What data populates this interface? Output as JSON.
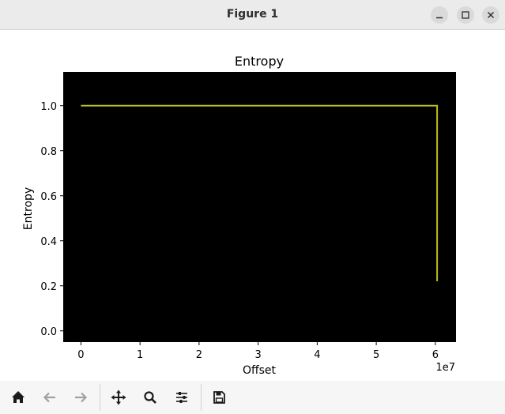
{
  "window": {
    "title": "Figure 1"
  },
  "toolbar": {
    "buttons": [
      {
        "icon": "home-icon",
        "enabled": true
      },
      {
        "icon": "back-arrow-icon",
        "enabled": false
      },
      {
        "icon": "forward-arrow-icon",
        "enabled": false
      },
      {
        "icon": "pan-move-icon",
        "enabled": true
      },
      {
        "icon": "zoom-magnifier-icon",
        "enabled": true
      },
      {
        "icon": "configure-sliders-icon",
        "enabled": true
      },
      {
        "icon": "save-floppy-icon",
        "enabled": true
      }
    ]
  },
  "colors": {
    "plot_background": "#000000",
    "line": "#bcbd22",
    "titlebar": "#ebebeb",
    "toolbar": "#f6f6f6"
  },
  "chart_data": {
    "type": "line",
    "title": "Entropy",
    "xlabel": "Offset",
    "ylabel": "Entropy",
    "x_offset_text": "1e7",
    "x_ticks": [
      0,
      1,
      2,
      3,
      4,
      5,
      6
    ],
    "x_tick_labels": [
      "0",
      "1",
      "2",
      "3",
      "4",
      "5",
      "6"
    ],
    "y_ticks": [
      0.0,
      0.2,
      0.4,
      0.6,
      0.8,
      1.0
    ],
    "y_tick_labels": [
      "0.0",
      "0.2",
      "0.4",
      "0.6",
      "0.8",
      "1.0"
    ],
    "xlim": [
      -3000000,
      63500000
    ],
    "ylim": [
      -0.05,
      1.15
    ],
    "grid": false,
    "series": [
      {
        "color": "#bcbd22",
        "x": [
          0,
          10000000,
          20000000,
          30000000,
          40000000,
          50000000,
          60000000,
          60300000,
          60300000
        ],
        "y": [
          1.0,
          1.0,
          1.0,
          1.0,
          1.0,
          1.0,
          1.0,
          1.0,
          0.22
        ]
      }
    ]
  }
}
